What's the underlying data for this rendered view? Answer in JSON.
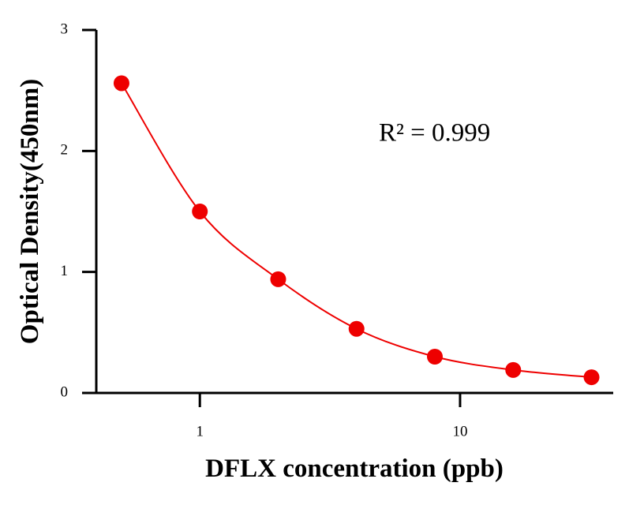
{
  "chart_data": {
    "type": "scatter",
    "x_label": "DFLX concentration (ppb)",
    "y_label": "Optical Density(450nm)",
    "annotation": "R² = 0.999",
    "x": [
      0.5,
      1,
      2,
      4,
      8,
      16,
      32
    ],
    "series": [
      {
        "color": "#ee0000",
        "values": [
          2.56,
          1.5,
          0.94,
          0.53,
          0.3,
          0.19,
          0.13
        ]
      }
    ],
    "fit_curve": true,
    "xscale": "log",
    "xlim": [
      0.4,
      38.5
    ],
    "xticks": [
      1,
      10
    ],
    "ylim": [
      0,
      3
    ],
    "yticks": [
      0,
      1,
      2,
      3
    ],
    "grid": false
  }
}
